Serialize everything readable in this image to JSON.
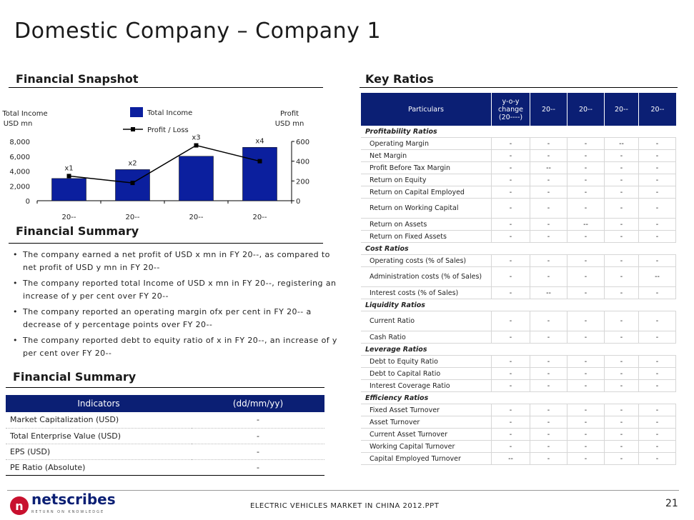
{
  "title": "Domestic Company – Company 1",
  "sections": {
    "financial_snapshot": "Financial Snapshot",
    "key_ratios": "Key Ratios",
    "financial_summary_1": "Financial Summary",
    "financial_summary_2": "Financial Summary"
  },
  "chart_data": {
    "type": "bar",
    "categories": [
      "20--",
      "20--",
      "20--",
      "20--"
    ],
    "series": [
      {
        "name": "Total Income",
        "values": [
          3000,
          4200,
          6000,
          7200
        ],
        "color": "#0b1f9e",
        "axis": "left"
      },
      {
        "name": "Profit / Loss",
        "values": [
          250,
          180,
          560,
          400
        ],
        "color": "#000000",
        "axis": "right",
        "type": "line"
      }
    ],
    "annotations": [
      "x1",
      "x2",
      "x3",
      "x4"
    ],
    "ylabel": "Total Income\nUSD mn",
    "ylabel_left_lines": [
      "Total Income",
      "USD mn"
    ],
    "ylabel_right_lines": [
      "Profit",
      "USD mn"
    ],
    "ylim": [
      0,
      8000
    ],
    "ylim_right": [
      0,
      600
    ],
    "yticks_left": [
      "8,000",
      "6,000",
      "4,000",
      "2,000",
      "0"
    ],
    "yticks_right": [
      "600",
      "400",
      "200",
      "0"
    ],
    "legend_location": "top-center"
  },
  "summary_bullets": [
    "The company earned a net profit of USD x mn in FY 20--, as compared to net profit of USD y mn in FY 20--",
    "The company reported total Income of  USD x mn in FY 20--, registering an increase of y per cent over FY 20--",
    "The company reported an operating margin ofx per cent in FY 20--  a decrease of y percentage points over FY 20--",
    "The company reported debt to equity ratio of x in FY 20--, an increase of y per cent over FY 20--"
  ],
  "indicators": {
    "headers": [
      "Indicators",
      "(dd/mm/yy)"
    ],
    "rows": [
      {
        "label": "Market Capitalization (USD)",
        "value": "-"
      },
      {
        "label": "Total Enterprise Value (USD)",
        "value": "-"
      },
      {
        "label": "EPS (USD)",
        "value": "-"
      },
      {
        "label": "PE Ratio (Absolute)",
        "value": "-"
      }
    ]
  },
  "ratios": {
    "headers": [
      "Particulars",
      "y-o-y change (20----)",
      "20--",
      "20--",
      "20--",
      "20--"
    ],
    "rows": [
      {
        "cat": "Profitability Ratios"
      },
      {
        "label": "Operating Margin",
        "vals": [
          "-",
          "-",
          "-",
          "--",
          "-"
        ]
      },
      {
        "label": "Net Margin",
        "vals": [
          "-",
          "-",
          "-",
          "-",
          "-"
        ]
      },
      {
        "label": "Profit Before Tax Margin",
        "vals": [
          "-",
          "--",
          "-",
          "-",
          "-"
        ]
      },
      {
        "label": "Return on Equity",
        "vals": [
          "-",
          "-",
          "-",
          "-",
          "-"
        ]
      },
      {
        "label": "Return on Capital Employed",
        "vals": [
          "-",
          "-",
          "-",
          "-",
          "-"
        ]
      },
      {
        "label": "Return on Working Capital",
        "vals": [
          "-",
          "-",
          "-",
          "-",
          "-"
        ],
        "tall": true
      },
      {
        "label": "Return on Assets",
        "vals": [
          "-",
          "-",
          "--",
          "-",
          "-"
        ]
      },
      {
        "label": "Return on Fixed Assets",
        "vals": [
          "-",
          "-",
          "-",
          "-",
          "-"
        ]
      },
      {
        "cat": "Cost Ratios"
      },
      {
        "label": "Operating costs (% of Sales)",
        "vals": [
          "-",
          "-",
          "-",
          "-",
          "-"
        ]
      },
      {
        "label": "Administration costs (% of Sales)",
        "vals": [
          "-",
          "-",
          "-",
          "-",
          "--"
        ],
        "tall": true
      },
      {
        "label": "Interest costs (% of Sales)",
        "vals": [
          "-",
          "--",
          "-",
          "-",
          "-"
        ]
      },
      {
        "cat": "Liquidity Ratios"
      },
      {
        "label": "Current Ratio",
        "vals": [
          "-",
          "-",
          "-",
          "-",
          "-"
        ],
        "tall": true
      },
      {
        "label": "Cash Ratio",
        "vals": [
          "-",
          "-",
          "-",
          "-",
          "-"
        ]
      },
      {
        "cat": "Leverage Ratios"
      },
      {
        "label": "Debt to Equity Ratio",
        "vals": [
          "-",
          "-",
          "-",
          "-",
          "-"
        ]
      },
      {
        "label": "Debt to Capital Ratio",
        "vals": [
          "-",
          "-",
          "-",
          "-",
          "-"
        ]
      },
      {
        "label": "Interest Coverage Ratio",
        "vals": [
          "-",
          "-",
          "-",
          "-",
          "-"
        ]
      },
      {
        "cat": "Efficiency Ratios"
      },
      {
        "label": "Fixed Asset Turnover",
        "vals": [
          "-",
          "-",
          "-",
          "-",
          "-"
        ]
      },
      {
        "label": "Asset Turnover",
        "vals": [
          "-",
          "-",
          "-",
          "-",
          "-"
        ]
      },
      {
        "label": "Current Asset Turnover",
        "vals": [
          "-",
          "-",
          "-",
          "-",
          "-"
        ]
      },
      {
        "label": "Working Capital Turnover",
        "vals": [
          "-",
          "-",
          "-",
          "-",
          "-"
        ]
      },
      {
        "label": "Capital Employed Turnover",
        "vals": [
          "--",
          "-",
          "-",
          "-",
          "-"
        ]
      }
    ]
  },
  "footer": {
    "logo": "netscribes",
    "logo_tagline": "RETURN ON KNOWLEDGE",
    "text": "ELECTRIC VEHICLES MARKET IN CHINA 2012.PPT",
    "page": "21"
  }
}
